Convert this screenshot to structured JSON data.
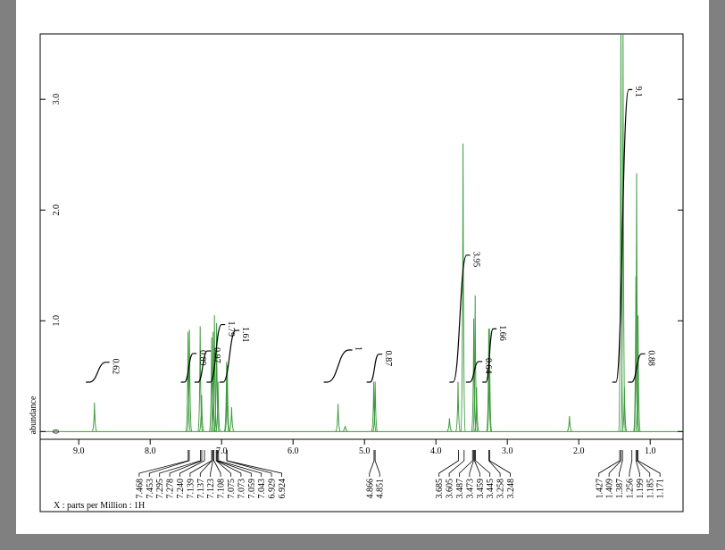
{
  "chart_data": {
    "type": "nmr",
    "x_label": "X : parts per Million : 1H",
    "y_label": "abundance",
    "xlim": [
      9.54,
      0.54
    ],
    "ylim": [
      -0.07,
      3.59
    ],
    "xticks": [
      {
        "value": 9,
        "label": "9.0"
      },
      {
        "value": 8,
        "label": "8.0"
      },
      {
        "value": 7,
        "label": "7.0"
      },
      {
        "value": 6,
        "label": "6.0"
      },
      {
        "value": 5,
        "label": "5.0"
      },
      {
        "value": 4,
        "label": "4.0"
      },
      {
        "value": 3,
        "label": "3.0"
      },
      {
        "value": 2,
        "label": "2.0"
      },
      {
        "value": 1,
        "label": "1.0"
      }
    ],
    "yticks": [
      0,
      {
        "value": 1,
        "label": "1.0"
      },
      {
        "value": 2,
        "label": "2.0"
      },
      {
        "value": 3,
        "label": "3.0"
      }
    ],
    "color": "#3d9a3d",
    "peaks": {
      "x": [
        8.78,
        7.47,
        7.45,
        7.3,
        7.28,
        7.14,
        7.12,
        7.1,
        7.07,
        7.05,
        6.93,
        6.92,
        6.86,
        5.37,
        5.27,
        4.87,
        4.85,
        3.81,
        3.69,
        3.62,
        3.47,
        3.45,
        3.43,
        3.26,
        3.25,
        2.13,
        1.41,
        1.38,
        1.36,
        1.2,
        1.19,
        1.17
      ],
      "values": [
        0.26,
        0.9,
        0.92,
        0.95,
        0.33,
        0.85,
        0.9,
        1.05,
        0.98,
        0.45,
        0.63,
        0.6,
        0.22,
        0.25,
        0.05,
        0.45,
        0.45,
        0.12,
        0.45,
        2.6,
        1.02,
        1.23,
        0.4,
        0.93,
        0.93,
        0.14,
        3.7,
        3.7,
        0.4,
        1.4,
        2.33,
        1.05
      ]
    },
    "integrals": [
      {
        "value": 0.62,
        "from": 8.85,
        "to": 8.62
      },
      {
        "value": 0.89,
        "from": 7.52,
        "to": 7.4
      },
      {
        "value": 0.97,
        "from": 7.33,
        "to": 7.2
      },
      {
        "value": 1.79,
        "from": 7.16,
        "to": 7.0
      },
      {
        "value": 1.61,
        "from": 6.98,
        "to": 6.8
      },
      {
        "value": 1.0,
        "from": 5.52,
        "to": 5.22
      },
      {
        "value": 0.87,
        "from": 4.92,
        "to": 4.8
      },
      {
        "value": 3.95,
        "from": 3.76,
        "to": 3.57
      },
      {
        "value": 0.64,
        "from": 3.53,
        "to": 3.4
      },
      {
        "value": 1.66,
        "from": 3.3,
        "to": 3.2
      },
      {
        "value": 0.88,
        "from": 1.26,
        "to": 1.12
      },
      {
        "value": 9.1,
        "from": 1.48,
        "to": 1.3
      }
    ],
    "peak_label_groups": [
      [
        7.468,
        7.453,
        7.295,
        7.278,
        {
          "value": 7.24,
          "label": "7.240"
        },
        7.139,
        7.137,
        7.123,
        7.108,
        7.075,
        7.073,
        7.059,
        7.043,
        6.929,
        6.924
      ],
      [
        4.866,
        4.851
      ],
      [
        3.685,
        3.605,
        3.487,
        3.473,
        3.459,
        3.445,
        3.258,
        3.248
      ],
      [
        1.427,
        1.409,
        1.387,
        1.256,
        1.199,
        1.185,
        1.171
      ]
    ]
  }
}
